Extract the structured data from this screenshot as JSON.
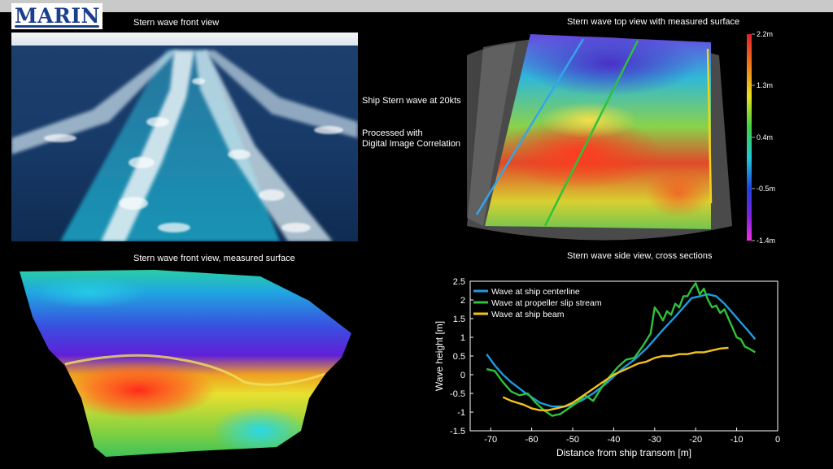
{
  "logo": {
    "text": "MARIN"
  },
  "panels": {
    "front_photo": {
      "caption": "Stern wave front view"
    },
    "top_view": {
      "caption": "Stern wave top view with measured surface",
      "colorbar_labels": [
        "2.2m",
        "1.3m",
        "0.4m",
        "-0.5m",
        "-1.4m"
      ]
    },
    "front_surface": {
      "caption": "Stern wave front view, measured surface"
    },
    "side_view": {
      "caption": "Stern wave side view, cross sections"
    }
  },
  "notes": {
    "line1": "Ship Stern wave at 20kts",
    "line2": "Processed with",
    "line3": "Digital Image Correlation"
  },
  "chart_data": {
    "type": "line",
    "title": "",
    "xlabel": "Distance from ship transom [m]",
    "ylabel": "Wave height [m]",
    "xlim": [
      -75,
      0
    ],
    "ylim": [
      -1.5,
      2.5
    ],
    "xticks": [
      -70,
      -60,
      -50,
      -40,
      -30,
      -20,
      -10,
      0
    ],
    "yticks": [
      -1.5,
      -1,
      -0.5,
      0,
      0.5,
      1,
      1.5,
      2,
      2.5
    ],
    "grid": false,
    "legend_position": "top-left",
    "series": [
      {
        "name": "Wave at ship centerline",
        "color": "#1e9be0",
        "x": [
          -71,
          -69,
          -67,
          -65,
          -62,
          -60,
          -58,
          -55,
          -52,
          -50,
          -48,
          -45,
          -42,
          -40,
          -38,
          -35,
          -32,
          -30,
          -28,
          -25,
          -23,
          -21,
          -19,
          -17,
          -15,
          -13,
          -11,
          -9,
          -7,
          -5.5
        ],
        "y": [
          0.55,
          0.25,
          0.0,
          -0.2,
          -0.45,
          -0.6,
          -0.75,
          -0.85,
          -0.85,
          -0.8,
          -0.7,
          -0.5,
          -0.25,
          -0.05,
          0.15,
          0.4,
          0.7,
          0.95,
          1.2,
          1.55,
          1.8,
          2.05,
          2.1,
          2.15,
          2.1,
          1.9,
          1.65,
          1.4,
          1.15,
          0.95
        ]
      },
      {
        "name": "Wave at propeller slip stream",
        "color": "#2ec23a",
        "x": [
          -71,
          -69,
          -67,
          -65,
          -63,
          -61,
          -59,
          -57,
          -55,
          -53,
          -51,
          -49,
          -47,
          -45,
          -43,
          -41,
          -39,
          -37,
          -35,
          -33,
          -31,
          -30,
          -29,
          -28,
          -27,
          -26,
          -25,
          -24,
          -23,
          -22,
          -21,
          -20,
          -19,
          -18,
          -17,
          -16,
          -15,
          -14,
          -13,
          -12,
          -11,
          -10,
          -9,
          -8,
          -7,
          -5.5
        ],
        "y": [
          0.15,
          0.1,
          -0.2,
          -0.45,
          -0.55,
          -0.5,
          -0.75,
          -0.95,
          -1.1,
          -1.05,
          -0.9,
          -0.75,
          -0.55,
          -0.7,
          -0.35,
          -0.05,
          0.2,
          0.4,
          0.45,
          0.75,
          1.1,
          1.8,
          1.65,
          1.45,
          1.7,
          1.6,
          1.9,
          1.8,
          2.1,
          2.1,
          2.3,
          2.45,
          2.15,
          2.3,
          2.0,
          1.8,
          1.85,
          1.65,
          1.75,
          1.5,
          1.25,
          1.0,
          0.95,
          0.75,
          0.7,
          0.6
        ]
      },
      {
        "name": "Wave at ship beam",
        "color": "#f2c21a",
        "x": [
          -67,
          -65,
          -62,
          -60,
          -58,
          -56,
          -54,
          -52,
          -50,
          -48,
          -46,
          -44,
          -42,
          -40,
          -38,
          -36,
          -34,
          -32,
          -30,
          -28,
          -26,
          -24,
          -22,
          -20,
          -18,
          -16,
          -14,
          -12
        ],
        "y": [
          -0.6,
          -0.7,
          -0.8,
          -0.9,
          -0.95,
          -0.95,
          -0.9,
          -0.85,
          -0.75,
          -0.6,
          -0.45,
          -0.3,
          -0.15,
          0.0,
          0.1,
          0.2,
          0.3,
          0.35,
          0.45,
          0.5,
          0.5,
          0.55,
          0.55,
          0.6,
          0.6,
          0.65,
          0.7,
          0.72
        ]
      }
    ]
  }
}
